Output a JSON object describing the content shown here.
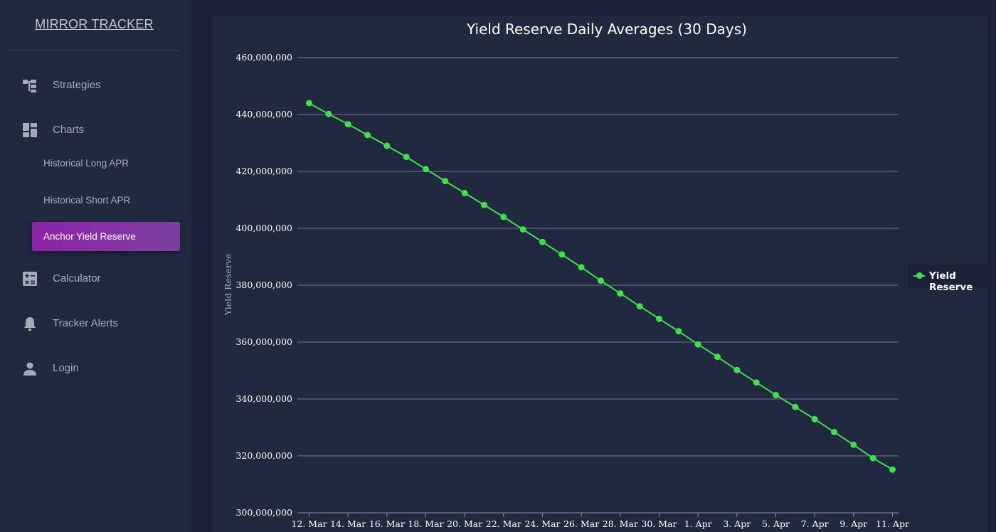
{
  "sidebar": {
    "brand": "MIRROR TRACKER",
    "items": [
      {
        "label": "Strategies",
        "icon": "strategies-icon"
      },
      {
        "label": "Charts",
        "icon": "dashboard-icon"
      },
      {
        "label": "Calculator",
        "icon": "calculator-icon"
      },
      {
        "label": "Tracker Alerts",
        "icon": "bell-icon"
      },
      {
        "label": "Login",
        "icon": "person-icon"
      }
    ],
    "chart_submenu": [
      {
        "label": "Historical Long APR",
        "active": false
      },
      {
        "label": "Historical Short APR",
        "active": false
      },
      {
        "label": "Anchor Yield Reserve",
        "active": true
      }
    ],
    "active_color": "#8e24aa"
  },
  "chart_data": {
    "type": "line",
    "title": "Yield Reserve Daily Averages (30 Days)",
    "xlabel": "",
    "ylabel": "Yield Reserve",
    "ylim": [
      300000000,
      460000000
    ],
    "y_ticks": [
      "300,000,000",
      "320,000,000",
      "340,000,000",
      "360,000,000",
      "380,000,000",
      "400,000,000",
      "420,000,000",
      "440,000,000",
      "460,000,000"
    ],
    "x_ticks": [
      "12. Mar",
      "14. Mar",
      "16. Mar",
      "18. Mar",
      "20. Mar",
      "22. Mar",
      "24. Mar",
      "26. Mar",
      "28. Mar",
      "30. Mar",
      "1. Apr",
      "3. Apr",
      "5. Apr",
      "7. Apr",
      "9. Apr",
      "11. Apr"
    ],
    "grid": true,
    "legend_position": "right",
    "series": [
      {
        "name": "Yield Reserve",
        "color": "#3fe04a",
        "x": [
          "12. Mar",
          "13. Mar",
          "14. Mar",
          "15. Mar",
          "16. Mar",
          "17. Mar",
          "18. Mar",
          "19. Mar",
          "20. Mar",
          "21. Mar",
          "22. Mar",
          "23. Mar",
          "24. Mar",
          "25. Mar",
          "26. Mar",
          "27. Mar",
          "28. Mar",
          "29. Mar",
          "30. Mar",
          "31. Mar",
          "1. Apr",
          "2. Apr",
          "3. Apr",
          "4. Apr",
          "5. Apr",
          "6. Apr",
          "7. Apr",
          "8. Apr",
          "9. Apr",
          "10. Apr",
          "11. Apr"
        ],
        "values": [
          444000000,
          440200000,
          436600000,
          432800000,
          429000000,
          425100000,
          420800000,
          416600000,
          412400000,
          408200000,
          404000000,
          399600000,
          395200000,
          390800000,
          386300000,
          381600000,
          377100000,
          372600000,
          368200000,
          363800000,
          359200000,
          354800000,
          350200000,
          345800000,
          341400000,
          337200000,
          332900000,
          328400000,
          323900000,
          319200000,
          315200000
        ]
      }
    ]
  }
}
